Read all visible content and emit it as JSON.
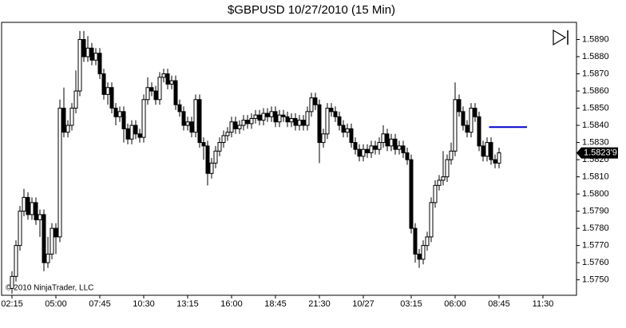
{
  "chart_data": {
    "type": "candlestick",
    "title": "$GBPUSD  10/27/2010 (15 Min)",
    "copyright": "© 2010 NinjaTrader, LLC",
    "open": [
      1.5745,
      1.5752,
      1.577,
      1.579,
      1.5798,
      1.5788,
      1.5795,
      1.5785,
      1.5788,
      1.576,
      1.5765,
      1.578,
      1.5775,
      1.585,
      1.5836,
      1.584,
      1.585,
      1.586,
      1.589,
      1.588,
      1.5885,
      1.5878,
      1.5882,
      1.587,
      1.5858,
      1.5862,
      1.585,
      1.5845,
      1.5848,
      1.5838,
      1.5832,
      1.584,
      1.5835,
      1.5833,
      1.5855,
      1.5862,
      1.586,
      1.5855,
      1.5868,
      1.587,
      1.5864,
      1.5866,
      1.5852,
      1.5848,
      1.584,
      1.5842,
      1.5836,
      1.5855,
      1.583,
      1.5828,
      1.5812,
      1.5818,
      1.5825,
      1.583,
      1.5834,
      1.5836,
      1.5842,
      1.5838,
      1.584,
      1.5843,
      1.5841,
      1.5844,
      1.5846,
      1.5843,
      1.5847,
      1.5845,
      1.5848,
      1.5842,
      1.5846,
      1.5845,
      1.5842,
      1.5844,
      1.584,
      1.5843,
      1.584,
      1.5848,
      1.5856,
      1.5852,
      1.583,
      1.5835,
      1.585,
      1.5848,
      1.5845,
      1.584,
      1.5836,
      1.5838,
      1.583,
      1.5826,
      1.5822,
      1.5826,
      1.5824,
      1.5828,
      1.5826,
      1.583,
      1.5835,
      1.5828,
      1.5832,
      1.5826,
      1.5828,
      1.5824,
      1.582,
      1.578,
      1.5765,
      1.5762,
      1.577,
      1.5775,
      1.5795,
      1.5805,
      1.5808,
      1.581,
      1.582,
      1.5825,
      1.5855,
      1.5848,
      1.584,
      1.5836,
      1.585,
      1.5845,
      1.5828,
      1.5822,
      1.583,
      1.582,
      1.5818
    ],
    "high": [
      1.5755,
      1.5773,
      1.5793,
      1.5803,
      1.5801,
      1.5798,
      1.5798,
      1.5791,
      1.5791,
      1.5775,
      1.5783,
      1.5783,
      1.5855,
      1.5862,
      1.5843,
      1.5853,
      1.5872,
      1.5895,
      1.5895,
      1.5892,
      1.5888,
      1.5885,
      1.5885,
      1.5873,
      1.5865,
      1.5865,
      1.5853,
      1.5851,
      1.5851,
      1.5841,
      1.5843,
      1.5843,
      1.5838,
      1.5858,
      1.5868,
      1.5865,
      1.5863,
      1.5871,
      1.5873,
      1.5873,
      1.5869,
      1.5869,
      1.5855,
      1.5851,
      1.5845,
      1.5845,
      1.5858,
      1.5858,
      1.5833,
      1.5831,
      1.5821,
      1.5828,
      1.5833,
      1.5837,
      1.5839,
      1.5845,
      1.5845,
      1.5843,
      1.5846,
      1.5846,
      1.5847,
      1.5849,
      1.5849,
      1.585,
      1.585,
      1.5851,
      1.5851,
      1.5849,
      1.5849,
      1.5848,
      1.5847,
      1.5847,
      1.5846,
      1.5846,
      1.5851,
      1.5859,
      1.5859,
      1.5855,
      1.5838,
      1.5853,
      1.5853,
      1.5851,
      1.5848,
      1.5843,
      1.5841,
      1.5841,
      1.5833,
      1.5829,
      1.5829,
      1.5829,
      1.5831,
      1.5831,
      1.5833,
      1.584,
      1.5838,
      1.5835,
      1.5835,
      1.5831,
      1.5831,
      1.5827,
      1.5823,
      1.5783,
      1.5768,
      1.5773,
      1.5778,
      1.5798,
      1.5808,
      1.5811,
      1.5825,
      1.5823,
      1.583,
      1.5865,
      1.5858,
      1.5851,
      1.5843,
      1.5853,
      1.5853,
      1.5848,
      1.5831,
      1.5833,
      1.5833,
      1.5823,
      1.5827
    ],
    "low": [
      1.5742,
      1.5749,
      1.5767,
      1.5787,
      1.5785,
      1.5785,
      1.5782,
      1.5775,
      1.5755,
      1.5757,
      1.5762,
      1.5765,
      1.5772,
      1.5833,
      1.5833,
      1.5837,
      1.5847,
      1.5857,
      1.5877,
      1.5877,
      1.5875,
      1.5875,
      1.5867,
      1.5855,
      1.5852,
      1.5847,
      1.584,
      1.5842,
      1.583,
      1.5829,
      1.5829,
      1.5832,
      1.583,
      1.583,
      1.5852,
      1.5857,
      1.5852,
      1.5852,
      1.5865,
      1.5861,
      1.5861,
      1.5849,
      1.5845,
      1.5837,
      1.5837,
      1.5833,
      1.5833,
      1.5827,
      1.582,
      1.5805,
      1.5809,
      1.5815,
      1.5822,
      1.5827,
      1.5831,
      1.5833,
      1.5835,
      1.5835,
      1.5837,
      1.5838,
      1.5838,
      1.5841,
      1.584,
      1.584,
      1.5842,
      1.5842,
      1.5839,
      1.5839,
      1.5842,
      1.5839,
      1.5839,
      1.5837,
      1.5837,
      1.5837,
      1.5837,
      1.5845,
      1.5849,
      1.5818,
      1.5827,
      1.5832,
      1.5845,
      1.5842,
      1.5837,
      1.5833,
      1.5833,
      1.5827,
      1.5823,
      1.5819,
      1.5819,
      1.5821,
      1.5821,
      1.5823,
      1.5823,
      1.5827,
      1.5825,
      1.5825,
      1.5823,
      1.5823,
      1.5821,
      1.5817,
      1.5777,
      1.576,
      1.5757,
      1.5759,
      1.5767,
      1.5772,
      1.5792,
      1.5802,
      1.5805,
      1.5807,
      1.5817,
      1.5822,
      1.5845,
      1.5837,
      1.5833,
      1.5833,
      1.5842,
      1.5825,
      1.5819,
      1.5819,
      1.5817,
      1.5815,
      1.5815
    ],
    "close": [
      1.5752,
      1.577,
      1.579,
      1.5798,
      1.5788,
      1.5795,
      1.5785,
      1.5788,
      1.576,
      1.5765,
      1.578,
      1.5775,
      1.585,
      1.5836,
      1.584,
      1.585,
      1.586,
      1.589,
      1.588,
      1.5885,
      1.5878,
      1.5882,
      1.587,
      1.5858,
      1.5862,
      1.585,
      1.5845,
      1.5848,
      1.5838,
      1.5832,
      1.584,
      1.5835,
      1.5833,
      1.5855,
      1.5862,
      1.586,
      1.5855,
      1.5868,
      1.587,
      1.5864,
      1.5866,
      1.5852,
      1.5848,
      1.584,
      1.5842,
      1.5836,
      1.5855,
      1.583,
      1.5828,
      1.5812,
      1.5818,
      1.5825,
      1.583,
      1.5834,
      1.5836,
      1.5842,
      1.5838,
      1.584,
      1.5843,
      1.5841,
      1.5844,
      1.5846,
      1.5843,
      1.5847,
      1.5845,
      1.5848,
      1.5842,
      1.5846,
      1.5845,
      1.5842,
      1.5844,
      1.584,
      1.5843,
      1.584,
      1.5848,
      1.5856,
      1.5852,
      1.583,
      1.5835,
      1.585,
      1.5848,
      1.5845,
      1.584,
      1.5836,
      1.5838,
      1.583,
      1.5826,
      1.5822,
      1.5826,
      1.5824,
      1.5828,
      1.5826,
      1.583,
      1.5835,
      1.5828,
      1.5832,
      1.5826,
      1.5828,
      1.5824,
      1.582,
      1.578,
      1.5765,
      1.5762,
      1.577,
      1.5775,
      1.5795,
      1.5805,
      1.5808,
      1.581,
      1.582,
      1.5825,
      1.5855,
      1.5848,
      1.584,
      1.5836,
      1.585,
      1.5845,
      1.5828,
      1.5822,
      1.583,
      1.582,
      1.5818,
      1.5824
    ],
    "up_color": "#ffffff",
    "down_color": "#000000",
    "wick_color": "#000000",
    "xlim": [
      -2.6,
      141.4
    ],
    "xticks": [
      {
        "value": 0,
        "label": "02:15"
      },
      {
        "value": 11,
        "label": "05:00"
      },
      {
        "value": 22,
        "label": "07:45"
      },
      {
        "value": 33,
        "label": "10:30"
      },
      {
        "value": 44,
        "label": "13:15"
      },
      {
        "value": 55,
        "label": "16:00"
      },
      {
        "value": 66,
        "label": "18:45"
      },
      {
        "value": 77,
        "label": "21:30"
      },
      {
        "value": 88,
        "label": "10/27"
      },
      {
        "value": 100,
        "label": "03:15"
      },
      {
        "value": 111,
        "label": "06:00"
      },
      {
        "value": 122,
        "label": "08:45"
      },
      {
        "value": 133,
        "label": "11:30"
      }
    ],
    "ylim": [
      1.5741,
      1.59
    ],
    "yticks": [
      {
        "value": 1.575,
        "label": "1.5750"
      },
      {
        "value": 1.576,
        "label": "1.5760"
      },
      {
        "value": 1.577,
        "label": "1.5770"
      },
      {
        "value": 1.578,
        "label": "1.5780"
      },
      {
        "value": 1.579,
        "label": "1.5790"
      },
      {
        "value": 1.58,
        "label": "1.5800"
      },
      {
        "value": 1.581,
        "label": "1.5810"
      },
      {
        "value": 1.582,
        "label": "1.5820"
      },
      {
        "value": 1.583,
        "label": "1.5830"
      },
      {
        "value": 1.584,
        "label": "1.5840"
      },
      {
        "value": 1.585,
        "label": "1.5850"
      },
      {
        "value": 1.586,
        "label": "1.5860"
      },
      {
        "value": 1.587,
        "label": "1.5870"
      },
      {
        "value": 1.588,
        "label": "1.5880"
      },
      {
        "value": 1.589,
        "label": "1.5890"
      }
    ],
    "last_price": {
      "value": 1.58239,
      "label": "1.5823'9"
    },
    "reference_line": {
      "value": 1.5839,
      "color": "#0000cc"
    }
  }
}
